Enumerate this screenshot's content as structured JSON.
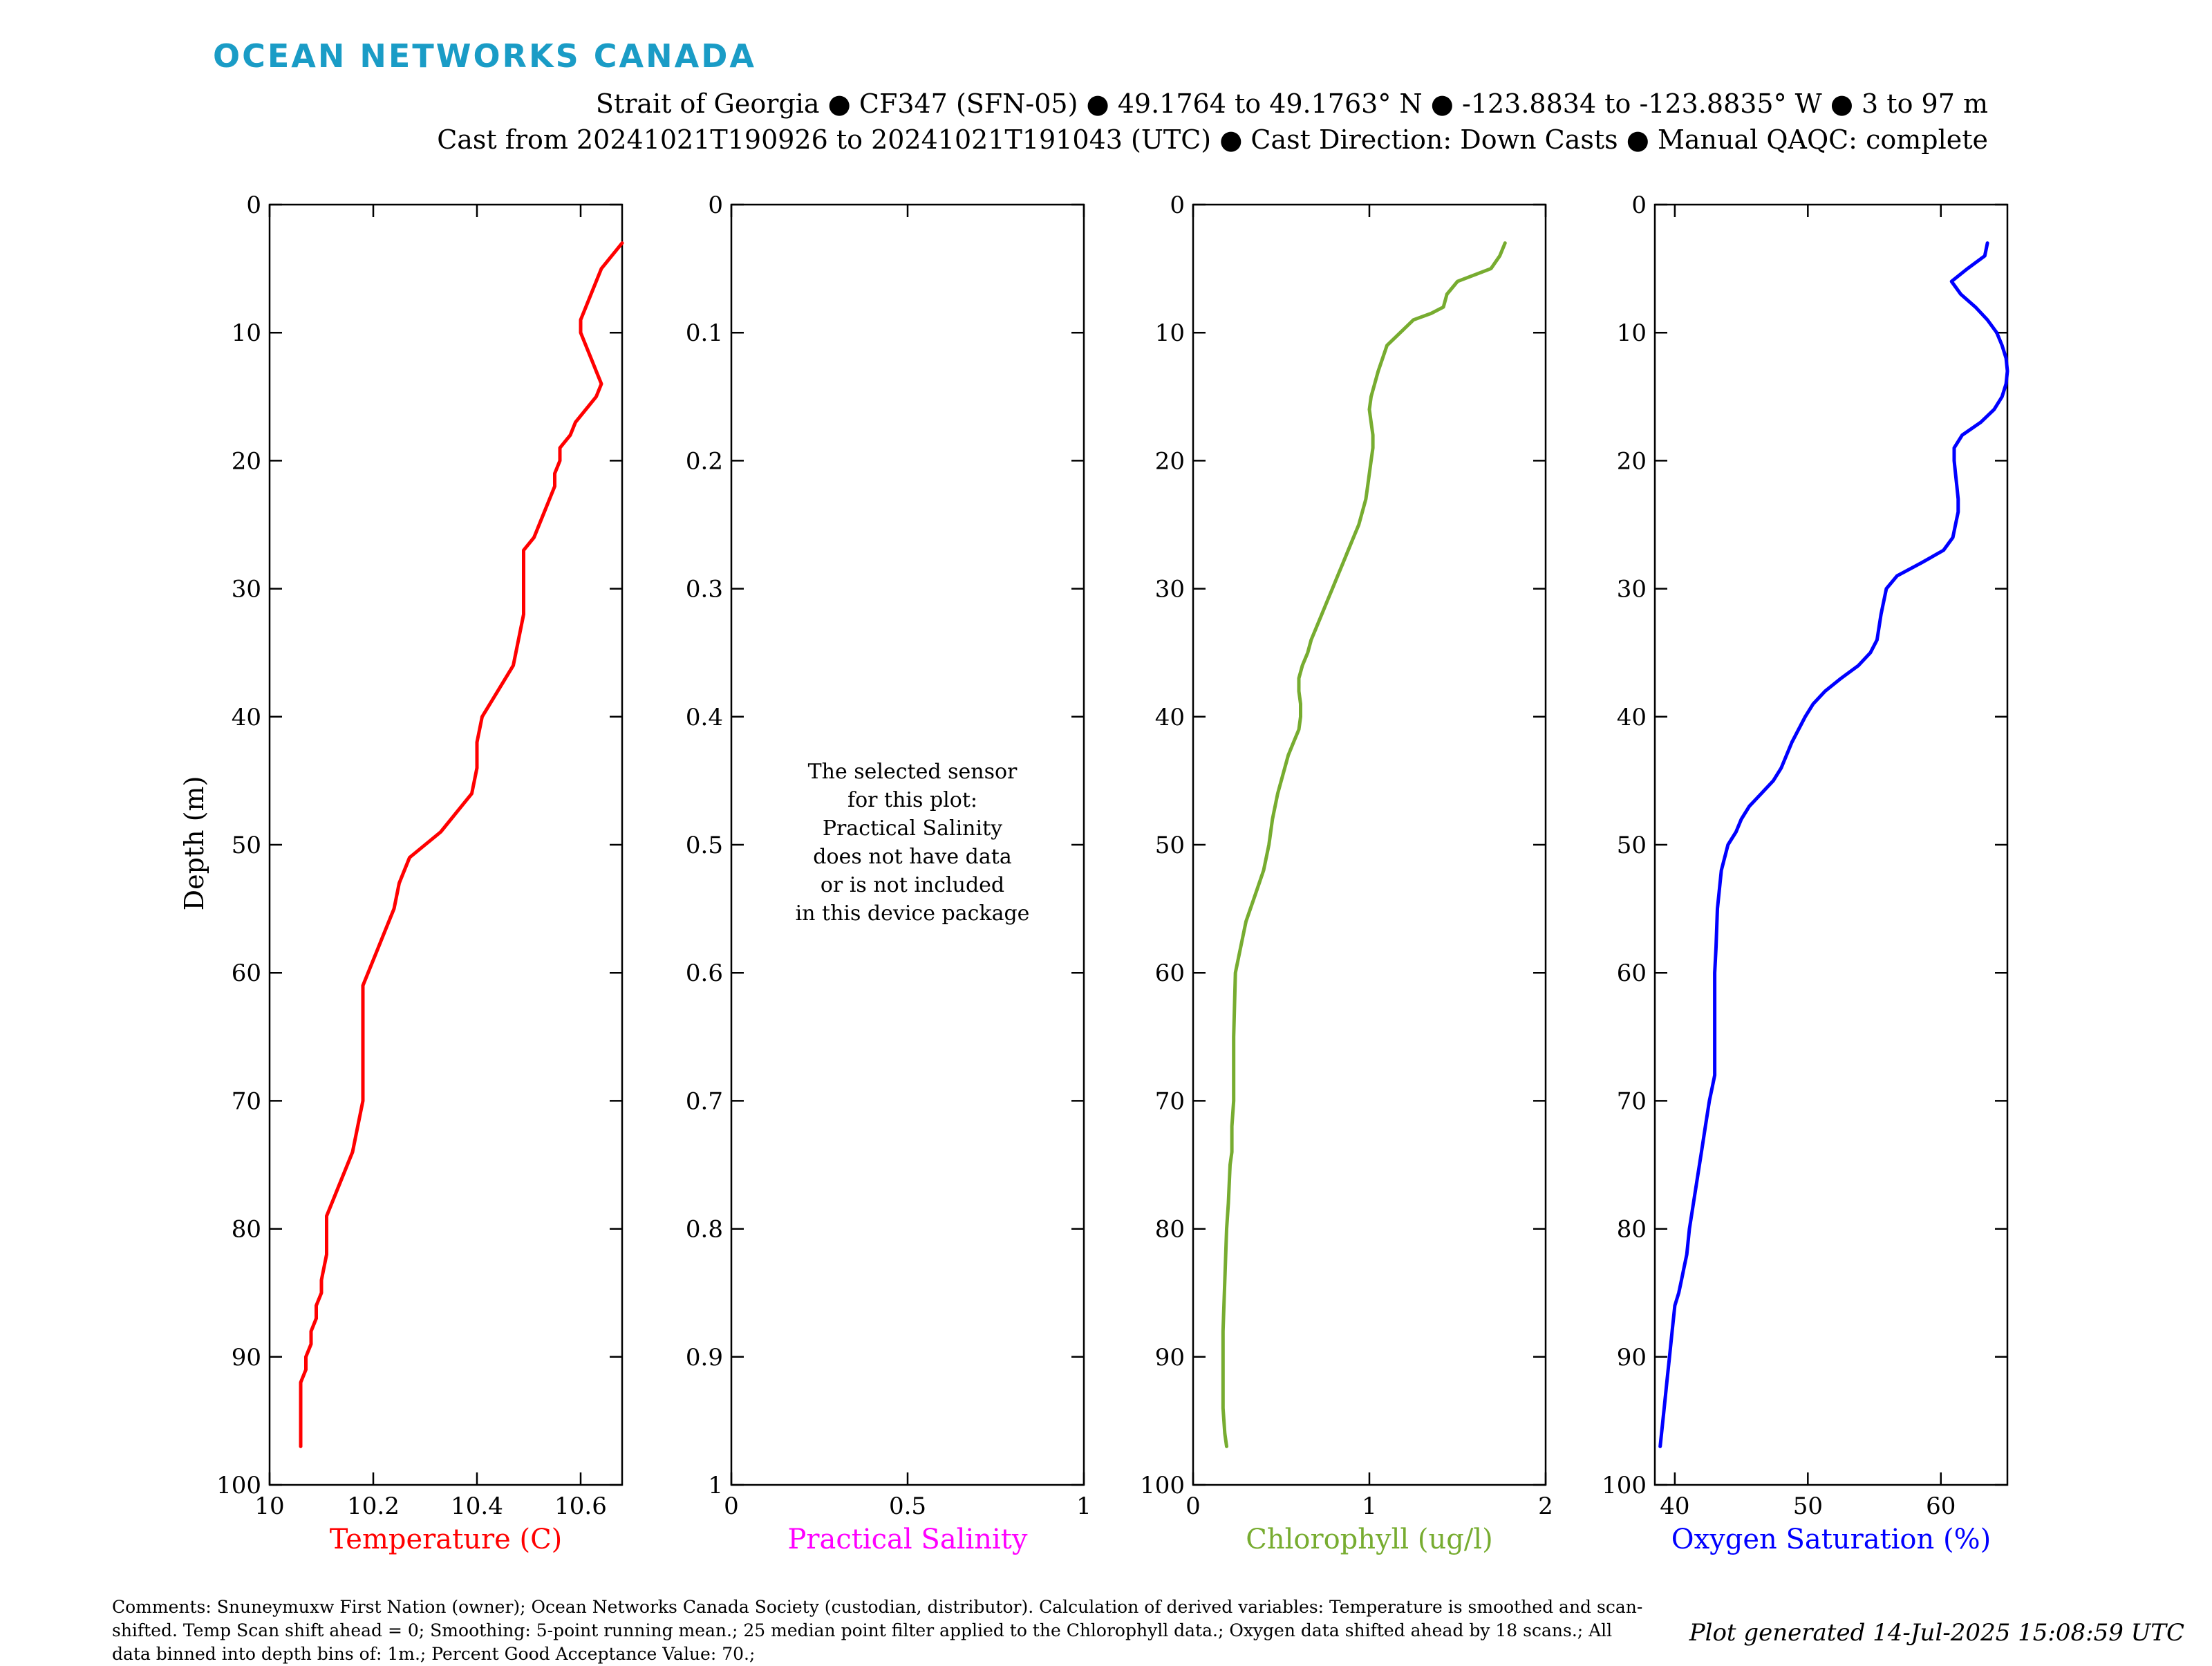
{
  "brand": {
    "logo_text": "OCEAN NETWORKS CANADA",
    "color": "#1a9cc6"
  },
  "header": {
    "line1": "Strait of Georgia ● CF347 (SFN-05) ● 49.1764 to 49.1763° N ● -123.8834 to -123.8835° W ● 3 to 97 m",
    "line2": "Cast from 20241021T190926 to 20241021T191043 (UTC) ● Cast Direction: Down Casts ● Manual QAQC: complete"
  },
  "no_data_message": [
    "The selected sensor",
    "for this plot:",
    "Practical Salinity",
    "does not have data",
    "or is not included",
    "in this device package"
  ],
  "footer": {
    "comments": "Comments: Snuneymuxw First Nation (owner); Ocean Networks Canada Society (custodian, distributor). Calculation of derived variables: Temperature is smoothed and scan-shifted. Temp Scan shift ahead = 0; Smoothing: 5-point running mean.; 25 median point filter applied to the Chlorophyll data.; Oxygen data shifted ahead by 18 scans.; All data binned into depth bins of: 1m.; Percent Good Acceptance Value: 70.;",
    "generated": "Plot generated 14-Jul-2025 15:08:59 UTC"
  },
  "chart_data": [
    {
      "type": "line",
      "xlabel": "Temperature (C)",
      "ylabel": "Depth (m)",
      "color": "#ff0000",
      "xlim": [
        10,
        10.68
      ],
      "xticks": [
        "10",
        "10.2",
        "10.4",
        "10.6"
      ],
      "xtick_values": [
        10,
        10.2,
        10.4,
        10.6
      ],
      "ylim": [
        0,
        100
      ],
      "y_reversed": true,
      "yticks": [
        "0",
        "10",
        "20",
        "30",
        "40",
        "50",
        "60",
        "70",
        "80",
        "90",
        "100"
      ],
      "ytick_values": [
        0,
        10,
        20,
        30,
        40,
        50,
        60,
        70,
        80,
        90,
        100
      ],
      "series": [
        {
          "x": [
            10.68,
            10.66,
            10.64,
            10.63,
            10.62,
            10.61,
            10.6,
            10.6,
            10.61,
            10.62,
            10.63,
            10.64,
            10.63,
            10.61,
            10.59,
            10.58,
            10.56,
            10.56,
            10.55,
            10.55,
            10.54,
            10.53,
            10.52,
            10.51,
            10.49,
            10.49,
            10.49,
            10.49,
            10.48,
            10.47,
            10.44,
            10.41,
            10.4,
            10.4,
            10.39,
            10.37,
            10.35,
            10.33,
            10.3,
            10.27,
            10.26,
            10.25,
            10.24,
            10.23,
            10.22,
            10.21,
            10.2,
            10.19,
            10.18,
            10.18,
            10.18,
            10.18,
            10.18,
            10.18,
            10.18,
            10.18,
            10.17,
            10.16,
            10.15,
            10.14,
            10.13,
            10.12,
            10.11,
            10.11,
            10.11,
            10.1,
            10.1,
            10.09,
            10.09,
            10.08,
            10.08,
            10.07,
            10.07,
            10.06,
            10.06,
            10.06,
            10.06,
            10.06,
            10.06
          ],
          "y": [
            3,
            4,
            5,
            6,
            7,
            8,
            9,
            10,
            11,
            12,
            13,
            14,
            15,
            16,
            17,
            18,
            19,
            20,
            21,
            22,
            23,
            24,
            25,
            26,
            27,
            28,
            30,
            32,
            34,
            36,
            38,
            40,
            42,
            44,
            46,
            47,
            48,
            49,
            50,
            51,
            52,
            53,
            55,
            56,
            57,
            58,
            59,
            60,
            61,
            62,
            63,
            64,
            65,
            66,
            68,
            70,
            72,
            74,
            75,
            76,
            77,
            78,
            79,
            80,
            82,
            84,
            85,
            86,
            87,
            88,
            89,
            90,
            91,
            92,
            93,
            94,
            95,
            96,
            97
          ]
        }
      ]
    },
    {
      "type": "line",
      "xlabel": "Practical Salinity",
      "color": "#ff00ff",
      "xlim": [
        0,
        1
      ],
      "xticks": [
        "0",
        "0.5",
        "1"
      ],
      "xtick_values": [
        0,
        0.5,
        1
      ],
      "ylim": [
        0,
        1
      ],
      "y_reversed": true,
      "yticks": [
        "0",
        "0.1",
        "0.2",
        "0.3",
        "0.4",
        "0.5",
        "0.6",
        "0.7",
        "0.8",
        "0.9",
        "1"
      ],
      "ytick_values": [
        0,
        0.1,
        0.2,
        0.3,
        0.4,
        0.5,
        0.6,
        0.7,
        0.8,
        0.9,
        1
      ],
      "series": []
    },
    {
      "type": "line",
      "xlabel": "Chlorophyll (ug/l)",
      "color": "#77ac30",
      "xlim": [
        0,
        2
      ],
      "xticks": [
        "0",
        "1",
        "2"
      ],
      "xtick_values": [
        0,
        1,
        2
      ],
      "ylim": [
        0,
        100
      ],
      "y_reversed": true,
      "yticks": [
        "0",
        "10",
        "20",
        "30",
        "40",
        "50",
        "60",
        "70",
        "80",
        "90",
        "100"
      ],
      "ytick_values": [
        0,
        10,
        20,
        30,
        40,
        50,
        60,
        70,
        80,
        90,
        100
      ],
      "series": [
        {
          "x": [
            1.77,
            1.74,
            1.69,
            1.5,
            1.44,
            1.42,
            1.35,
            1.25,
            1.1,
            1.05,
            1.01,
            1.0,
            1.01,
            1.02,
            1.02,
            1.01,
            1.0,
            0.99,
            0.98,
            0.96,
            0.94,
            0.91,
            0.88,
            0.85,
            0.82,
            0.79,
            0.76,
            0.73,
            0.7,
            0.67,
            0.65,
            0.62,
            0.6,
            0.6,
            0.61,
            0.61,
            0.6,
            0.57,
            0.54,
            0.52,
            0.48,
            0.45,
            0.43,
            0.4,
            0.35,
            0.3,
            0.27,
            0.24,
            0.23,
            0.23,
            0.22,
            0.22,
            0.21,
            0.2,
            0.19,
            0.18,
            0.17,
            0.17,
            0.17,
            0.17,
            0.18,
            0.19
          ],
          "y": [
            3,
            4,
            5,
            6,
            7,
            8,
            8.5,
            9,
            11,
            13,
            15,
            16,
            17,
            18,
            19,
            20,
            21,
            22,
            23,
            24,
            25,
            26,
            27,
            28,
            29,
            30,
            31,
            32,
            33,
            34,
            35,
            36,
            37,
            38,
            39,
            40,
            41,
            42,
            43,
            44,
            46,
            48,
            50,
            52,
            54,
            56,
            58,
            60,
            65,
            70,
            72,
            74,
            75,
            78,
            80,
            84,
            88,
            90,
            92,
            94,
            96,
            97
          ]
        }
      ]
    },
    {
      "type": "line",
      "xlabel": "Oxygen Saturation (%)",
      "color": "#0000ff",
      "xlim": [
        38.5,
        65
      ],
      "xticks": [
        "40",
        "50",
        "60"
      ],
      "xtick_values": [
        40,
        50,
        60
      ],
      "ylim": [
        0,
        100
      ],
      "y_reversed": true,
      "yticks": [
        "0",
        "10",
        "20",
        "30",
        "40",
        "50",
        "60",
        "70",
        "80",
        "90",
        "100"
      ],
      "ytick_values": [
        0,
        10,
        20,
        30,
        40,
        50,
        60,
        70,
        80,
        90,
        100
      ],
      "series": [
        {
          "x": [
            63.5,
            63.3,
            62.0,
            60.8,
            61.5,
            62.6,
            63.5,
            64.2,
            64.6,
            64.9,
            65.0,
            64.9,
            64.6,
            64.0,
            63.0,
            61.6,
            61.0,
            61.0,
            61.1,
            61.2,
            61.3,
            61.3,
            61.1,
            60.9,
            60.2,
            58.5,
            56.7,
            55.9,
            55.5,
            55.2,
            54.7,
            53.8,
            52.5,
            51.3,
            50.4,
            49.8,
            48.8,
            48.0,
            47.4,
            46.5,
            45.6,
            45.0,
            44.6,
            44.0,
            43.5,
            43.2,
            43.1,
            43.0,
            43.0,
            43.0,
            43.0,
            43.0,
            42.8,
            42.6,
            42.3,
            42.0,
            41.7,
            41.4,
            41.1,
            40.9,
            40.7,
            40.5,
            40.3,
            40.0,
            39.8,
            39.6,
            39.4,
            39.2,
            38.9
          ],
          "y": [
            3,
            4,
            5,
            6,
            7,
            8,
            9,
            10,
            11,
            12,
            13,
            14,
            15,
            16,
            17,
            18,
            19,
            20,
            21,
            22,
            23,
            24,
            25,
            26,
            27,
            28,
            29,
            30,
            32,
            34,
            35,
            36,
            37,
            38,
            39,
            40,
            42,
            44,
            45,
            46,
            47,
            48,
            49,
            50,
            52,
            55,
            58,
            60,
            62,
            64,
            66,
            68,
            69,
            70,
            72,
            74,
            76,
            78,
            80,
            82,
            83,
            84,
            85,
            86,
            88,
            90,
            92,
            94,
            97
          ]
        }
      ]
    }
  ]
}
